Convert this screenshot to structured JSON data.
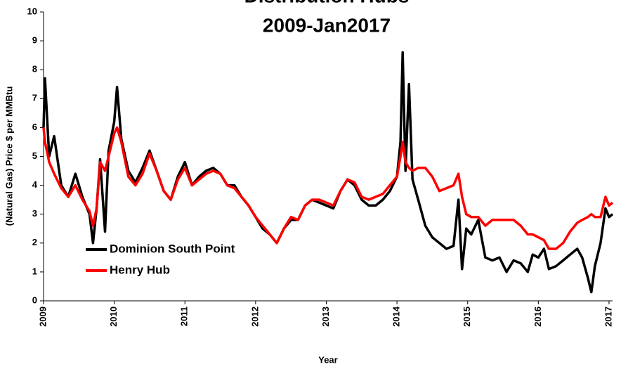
{
  "chart_data": {
    "type": "line",
    "title": [
      "Distribution Hubs",
      "2009-Jan2017"
    ],
    "x_label": "Year",
    "y_label": "(Natural Gas) Price $ per MMBtu",
    "x": [
      2009.0,
      2009.02,
      2009.08,
      2009.15,
      2009.25,
      2009.35,
      2009.45,
      2009.55,
      2009.65,
      2009.7,
      2009.75,
      2009.8,
      2009.87,
      2009.92,
      2010.0,
      2010.04,
      2010.1,
      2010.2,
      2010.3,
      2010.4,
      2010.5,
      2010.6,
      2010.7,
      2010.8,
      2010.9,
      2011.0,
      2011.1,
      2011.2,
      2011.3,
      2011.4,
      2011.5,
      2011.6,
      2011.7,
      2011.8,
      2011.9,
      2012.0,
      2012.1,
      2012.2,
      2012.3,
      2012.4,
      2012.5,
      2012.6,
      2012.7,
      2012.8,
      2012.9,
      2013.0,
      2013.1,
      2013.2,
      2013.3,
      2013.4,
      2013.5,
      2013.6,
      2013.7,
      2013.8,
      2013.9,
      2014.0,
      2014.05,
      2014.08,
      2014.12,
      2014.17,
      2014.22,
      2014.3,
      2014.4,
      2014.5,
      2014.6,
      2014.7,
      2014.8,
      2014.87,
      2014.92,
      2014.98,
      2015.05,
      2015.15,
      2015.25,
      2015.35,
      2015.45,
      2015.55,
      2015.65,
      2015.75,
      2015.85,
      2015.92,
      2016.0,
      2016.08,
      2016.15,
      2016.25,
      2016.35,
      2016.45,
      2016.55,
      2016.62,
      2016.7,
      2016.75,
      2016.8,
      2016.88,
      2016.95,
      2017.0,
      2017.05
    ],
    "series": [
      {
        "name": "Dominion South Point",
        "color": "#000000",
        "values": [
          6.0,
          7.7,
          5.0,
          5.7,
          4.0,
          3.6,
          4.4,
          3.6,
          3.0,
          2.0,
          3.2,
          4.9,
          2.4,
          5.2,
          6.2,
          7.4,
          5.6,
          4.5,
          4.1,
          4.6,
          5.2,
          4.5,
          3.8,
          3.5,
          4.3,
          4.8,
          4.0,
          4.3,
          4.5,
          4.6,
          4.4,
          4.0,
          4.0,
          3.6,
          3.3,
          2.9,
          2.5,
          2.3,
          2.0,
          2.5,
          2.8,
          2.8,
          3.3,
          3.5,
          3.4,
          3.3,
          3.2,
          3.8,
          4.2,
          4.0,
          3.5,
          3.3,
          3.3,
          3.5,
          3.8,
          4.3,
          5.5,
          8.6,
          4.5,
          7.5,
          4.2,
          3.5,
          2.6,
          2.2,
          2.0,
          1.8,
          1.9,
          3.5,
          1.1,
          2.5,
          2.3,
          2.8,
          1.5,
          1.4,
          1.5,
          1.0,
          1.4,
          1.3,
          1.0,
          1.6,
          1.5,
          1.8,
          1.1,
          1.2,
          1.4,
          1.6,
          1.8,
          1.5,
          0.8,
          0.3,
          1.2,
          2.0,
          3.2,
          2.9,
          3.0
        ]
      },
      {
        "name": "Henry Hub",
        "color": "#ff0000",
        "values": [
          6.0,
          5.5,
          4.8,
          4.4,
          3.9,
          3.6,
          4.0,
          3.5,
          3.1,
          2.6,
          3.2,
          4.8,
          4.5,
          5.0,
          5.8,
          6.0,
          5.5,
          4.3,
          4.0,
          4.4,
          5.1,
          4.5,
          3.8,
          3.5,
          4.2,
          4.6,
          4.0,
          4.2,
          4.4,
          4.5,
          4.4,
          4.0,
          3.9,
          3.6,
          3.3,
          2.9,
          2.6,
          2.3,
          2.0,
          2.5,
          2.9,
          2.8,
          3.3,
          3.5,
          3.5,
          3.4,
          3.3,
          3.8,
          4.2,
          4.1,
          3.6,
          3.5,
          3.6,
          3.7,
          4.0,
          4.3,
          5.0,
          5.5,
          4.8,
          4.6,
          4.5,
          4.6,
          4.6,
          4.3,
          3.8,
          3.9,
          4.0,
          4.4,
          3.6,
          3.0,
          2.9,
          2.9,
          2.6,
          2.8,
          2.8,
          2.8,
          2.8,
          2.6,
          2.3,
          2.3,
          2.2,
          2.1,
          1.8,
          1.8,
          2.0,
          2.4,
          2.7,
          2.8,
          2.9,
          3.0,
          2.9,
          2.9,
          3.6,
          3.3,
          3.4
        ]
      }
    ],
    "xlim": [
      2009,
      2017.05
    ],
    "xticks": [
      2009,
      2010,
      2011,
      2012,
      2013,
      2014,
      2015,
      2016,
      2017
    ],
    "ylim": [
      0,
      10
    ],
    "yticks": [
      0,
      1,
      2,
      3,
      4,
      5,
      6,
      7,
      8,
      9,
      10
    ],
    "grid": false,
    "legend": "lower-left"
  }
}
